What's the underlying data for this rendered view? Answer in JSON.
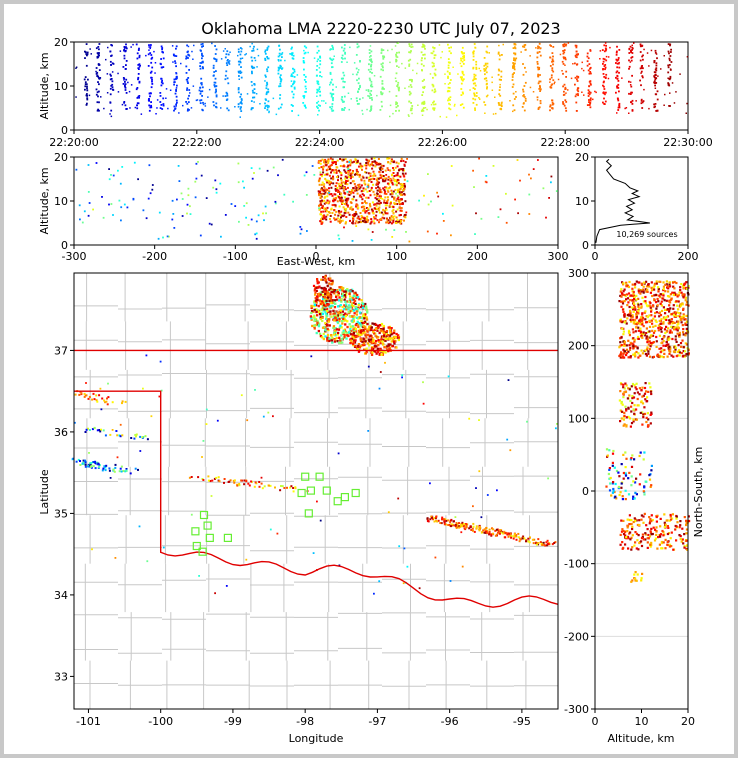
{
  "title": "Oklahoma LMA 2220-2230 UTC July 07, 2023",
  "source_note": "10,269 sources",
  "colors": {
    "state_border": "#e00000",
    "county_border": "#c8c8c8",
    "station": "#66ee33",
    "axes": "#000000",
    "colormap": "jet (blue → red by time)"
  },
  "chart_data": [
    {
      "id": "altitude_time",
      "type": "scatter",
      "xlabel": "",
      "ylabel": "Altitude, km",
      "xticks": [
        "22:20:00",
        "22:22:00",
        "22:24:00",
        "22:26:00",
        "22:28:00",
        "22:30:00"
      ],
      "xlim": [
        "22:20:00",
        "22:30:00"
      ],
      "ylim": [
        0,
        20
      ],
      "yticks": [
        0,
        10,
        20
      ],
      "series_description": "VHF sources colored by time; dense vertical streaks between 5 and 20 km altitude"
    },
    {
      "id": "ew_altitude",
      "type": "scatter",
      "xlabel": "East-West, km",
      "ylabel": "Altitude, km",
      "xlim": [
        -300,
        300
      ],
      "xticks": [
        -300,
        -200,
        -100,
        0,
        100,
        200,
        300
      ],
      "ylim": [
        0,
        20
      ],
      "yticks": [
        0,
        10,
        20
      ],
      "cluster": {
        "x_range": [
          0,
          110
        ],
        "alt_range": [
          5,
          20
        ]
      }
    },
    {
      "id": "altitude_histogram",
      "type": "line",
      "xlabel": "",
      "ylabel": "",
      "xlim": [
        0,
        200
      ],
      "xticks": [
        0,
        200
      ],
      "ylim": [
        0,
        20
      ],
      "yticks": [
        0,
        10,
        20
      ],
      "profile": [
        {
          "count": 2,
          "alt": 0.5
        },
        {
          "count": 4,
          "alt": 2.0
        },
        {
          "count": 10,
          "alt": 3.5
        },
        {
          "count": 55,
          "alt": 4.5
        },
        {
          "count": 118,
          "alt": 5.0
        },
        {
          "count": 70,
          "alt": 5.7
        },
        {
          "count": 82,
          "alt": 6.5
        },
        {
          "count": 65,
          "alt": 7.3
        },
        {
          "count": 80,
          "alt": 8.0
        },
        {
          "count": 68,
          "alt": 8.8
        },
        {
          "count": 85,
          "alt": 9.5
        },
        {
          "count": 72,
          "alt": 10.3
        },
        {
          "count": 95,
          "alt": 11.0
        },
        {
          "count": 80,
          "alt": 11.7
        },
        {
          "count": 92,
          "alt": 12.3
        },
        {
          "count": 75,
          "alt": 13.0
        },
        {
          "count": 65,
          "alt": 14.0
        },
        {
          "count": 40,
          "alt": 15.0
        },
        {
          "count": 30,
          "alt": 16.3
        },
        {
          "count": 25,
          "alt": 17.0
        },
        {
          "count": 35,
          "alt": 18.0
        },
        {
          "count": 25,
          "alt": 19.0
        },
        {
          "count": 30,
          "alt": 19.5
        }
      ]
    },
    {
      "id": "plan_view",
      "type": "scatter",
      "xlabel": "Longitude",
      "ylabel": "Latitude",
      "xlim": [
        -101.2,
        -94.5
      ],
      "ylim": [
        32.6,
        37.95
      ],
      "xticks": [
        -101,
        -100,
        -99,
        -98,
        -97,
        -96,
        -95
      ],
      "yticks": [
        33,
        34,
        35,
        36,
        37
      ],
      "stations": [
        {
          "lon": -98.0,
          "lat": 35.45
        },
        {
          "lon": -97.8,
          "lat": 35.45
        },
        {
          "lon": -98.05,
          "lat": 35.25
        },
        {
          "lon": -97.92,
          "lat": 35.28
        },
        {
          "lon": -97.7,
          "lat": 35.28
        },
        {
          "lon": -97.45,
          "lat": 35.2
        },
        {
          "lon": -97.55,
          "lat": 35.15
        },
        {
          "lon": -97.3,
          "lat": 35.25
        },
        {
          "lon": -97.95,
          "lat": 35.0
        },
        {
          "lon": -99.4,
          "lat": 34.98
        },
        {
          "lon": -99.35,
          "lat": 34.85
        },
        {
          "lon": -99.52,
          "lat": 34.78
        },
        {
          "lon": -99.32,
          "lat": 34.7
        },
        {
          "lon": -99.07,
          "lat": 34.7
        },
        {
          "lon": -99.5,
          "lat": 34.6
        },
        {
          "lon": -99.42,
          "lat": 34.53
        }
      ]
    },
    {
      "id": "ns_altitude",
      "type": "scatter",
      "xlabel": "Altitude, km",
      "ylabel": "North-South, km",
      "xlim": [
        0,
        20
      ],
      "xticks": [
        0,
        10,
        20
      ],
      "ylim": [
        -300,
        300
      ],
      "yticks": [
        -300,
        -200,
        -100,
        0,
        100,
        200,
        300
      ]
    }
  ]
}
